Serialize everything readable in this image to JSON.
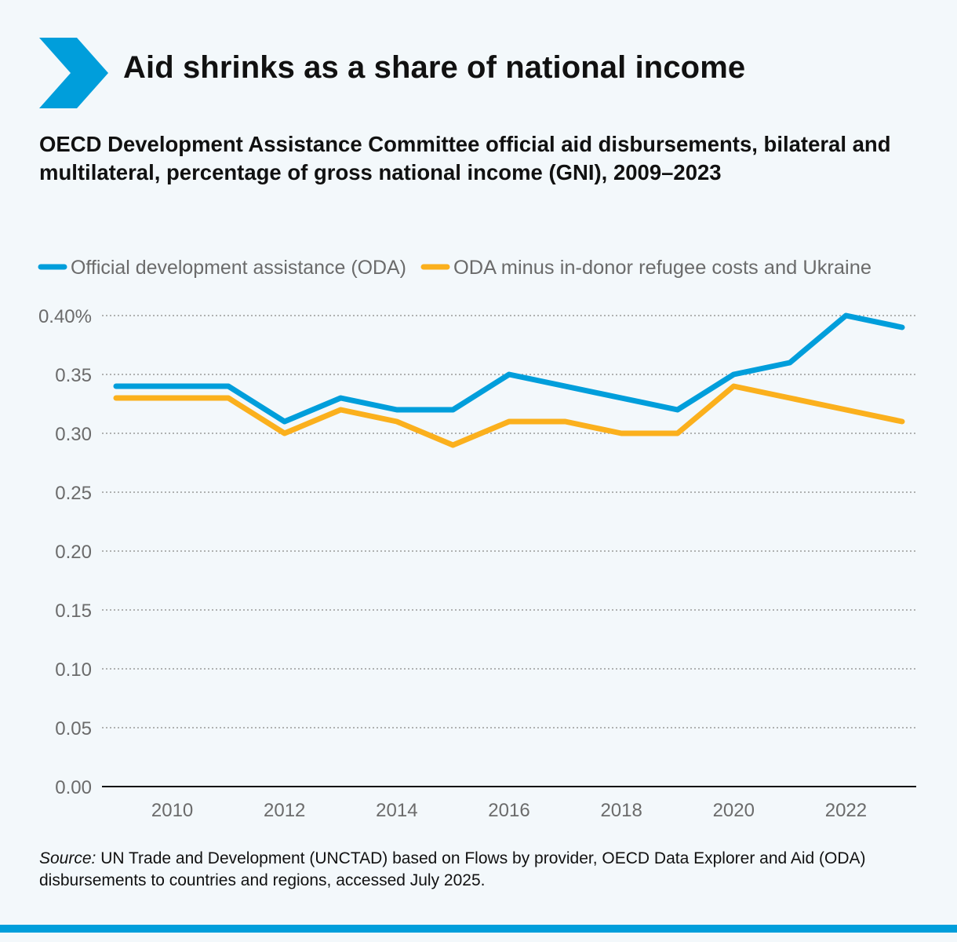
{
  "header": {
    "title": "Aid shrinks as a share of national income",
    "subtitle": "OECD Development Assistance Committee official aid disbursements, bilateral and multilateral, percentage of gross national income (GNI), 2009–2023"
  },
  "colors": {
    "accent": "#009edb",
    "oda": "#009edb",
    "oda_minus": "#fbb01d",
    "background": "#f3f8fb"
  },
  "chart_data": {
    "type": "line",
    "title": "Aid shrinks as a share of national income",
    "xlabel": "",
    "ylabel": "",
    "x": [
      2009,
      2010,
      2011,
      2012,
      2013,
      2014,
      2015,
      2016,
      2017,
      2018,
      2019,
      2020,
      2021,
      2022,
      2023
    ],
    "xticks": [
      2010,
      2012,
      2014,
      2016,
      2018,
      2020,
      2022
    ],
    "yticks": [
      "0.00",
      "0.05",
      "0.10",
      "0.15",
      "0.20",
      "0.25",
      "0.30",
      "0.35",
      "0.40%"
    ],
    "ylim": [
      0,
      0.4
    ],
    "grid": true,
    "legend_position": "top-left",
    "series": [
      {
        "name": "Official development assistance (ODA)",
        "color": "#009edb",
        "values": [
          0.34,
          0.34,
          0.34,
          0.31,
          0.33,
          0.32,
          0.32,
          0.35,
          0.34,
          0.33,
          0.32,
          0.35,
          0.36,
          0.4,
          0.39
        ]
      },
      {
        "name": "ODA minus in-donor refugee costs and Ukraine",
        "color": "#fbb01d",
        "values": [
          0.33,
          0.33,
          0.33,
          0.3,
          0.32,
          0.31,
          0.29,
          0.31,
          0.31,
          0.3,
          0.3,
          0.34,
          0.33,
          0.32,
          0.31
        ]
      }
    ]
  },
  "footer": {
    "source_label": "Source:",
    "source_text": " UN Trade and Development (UNCTAD) based on Flows by provider, OECD Data Explorer and Aid (ODA) disbursements to countries and regions, accessed July 2025."
  }
}
